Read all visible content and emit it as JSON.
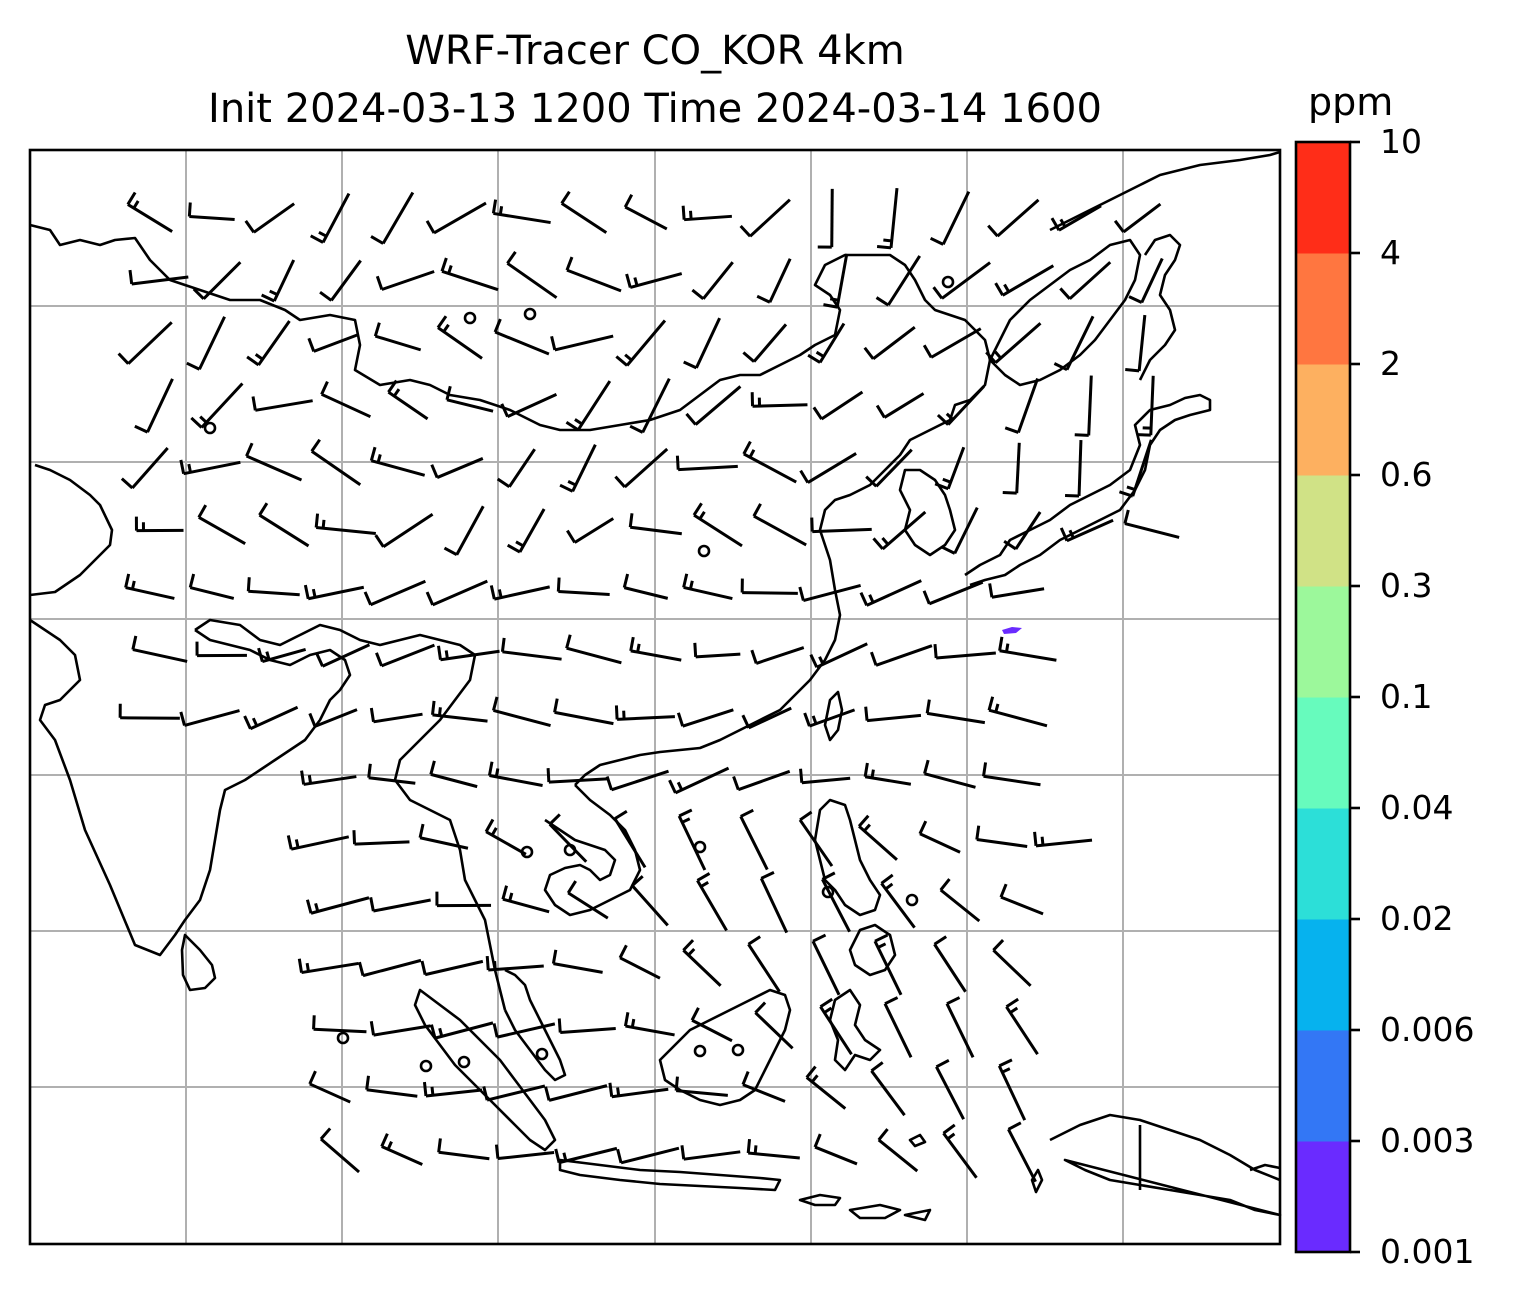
{
  "title": {
    "line1": "WRF-Tracer CO_KOR 4km",
    "line2": "Init 2024-03-13 1200 Time 2024-03-14 1600"
  },
  "colorbar": {
    "unit": "ppm",
    "ticks": [
      "0.001",
      "0.003",
      "0.006",
      "0.02",
      "0.04",
      "0.1",
      "0.3",
      "0.6",
      "2",
      "4",
      "10"
    ],
    "colors": [
      "#6a2bff",
      "#3377f5",
      "#06b2ee",
      "#2cdfd8",
      "#67fbbd",
      "#9cf89b",
      "#d0e286",
      "#fdb060",
      "#ff7640",
      "#ff2d18"
    ]
  },
  "map": {
    "gridlines": "on",
    "tracer_patch_color": "#6a2bff",
    "wind_barbs": "black"
  }
}
